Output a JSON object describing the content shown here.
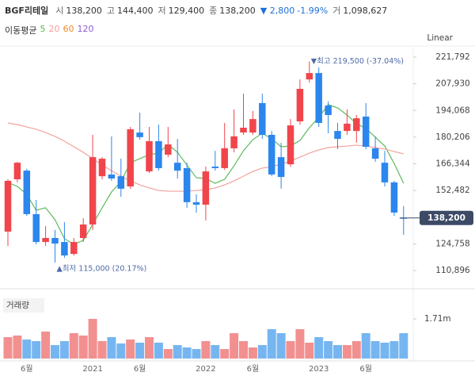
{
  "header": {
    "name": "BGF리테일",
    "items": [
      {
        "label": "시",
        "value": "138,200"
      },
      {
        "label": "고",
        "value": "144,400"
      },
      {
        "label": "저",
        "value": "129,400"
      },
      {
        "label": "종",
        "value": "138,200"
      }
    ],
    "change": "▼ 2,800",
    "change_pct": "-1.99%",
    "volume_label": "거",
    "volume": "1,098,627"
  },
  "chart_data": {
    "type": "candlestick",
    "categories": [
      null,
      null,
      "6월",
      null,
      null,
      null,
      null,
      null,
      null,
      "2021",
      null,
      null,
      null,
      null,
      "6월",
      null,
      null,
      null,
      null,
      null,
      null,
      "2022",
      null,
      null,
      null,
      null,
      "6월",
      null,
      null,
      null,
      null,
      null,
      null,
      "2023",
      null,
      null,
      null,
      null,
      "6월",
      null,
      null,
      null,
      null
    ],
    "open": [
      131100,
      158300,
      162800,
      140200,
      125700,
      127800,
      125700,
      119500,
      127800,
      134800,
      159900,
      160800,
      159900,
      154600,
      182600,
      162400,
      178100,
      171100,
      166900,
      164100,
      146400,
      145100,
      164900,
      164100,
      174400,
      182600,
      182600,
      197900,
      181400,
      169800,
      166100,
      188400,
      210200,
      213500,
      196600,
      183400,
      183400,
      183400,
      190900,
      174400,
      166900,
      156700,
      138200
    ],
    "high": [
      158300,
      167400,
      163700,
      147600,
      134000,
      131900,
      136000,
      127800,
      138100,
      181400,
      169800,
      180600,
      169000,
      185500,
      192900,
      185500,
      186700,
      185500,
      179300,
      166900,
      150500,
      164900,
      173100,
      187600,
      194600,
      202800,
      193800,
      202800,
      183400,
      177300,
      189600,
      210200,
      219500,
      216400,
      198700,
      187600,
      194600,
      191700,
      197900,
      180600,
      173100,
      157500,
      144400
    ],
    "low": [
      123700,
      156700,
      139300,
      124500,
      123700,
      115000,
      117500,
      118700,
      125700,
      131900,
      158300,
      157500,
      149200,
      153400,
      178900,
      161600,
      162800,
      169800,
      158700,
      143500,
      141000,
      136900,
      162800,
      163200,
      172300,
      181400,
      181400,
      179300,
      159900,
      153400,
      164900,
      186700,
      208600,
      185500,
      182200,
      174000,
      181400,
      177300,
      174000,
      167400,
      154600,
      139300,
      129400
    ],
    "close": [
      157500,
      166900,
      140200,
      125700,
      127800,
      124900,
      118700,
      125700,
      134800,
      169800,
      169000,
      158700,
      153400,
      184300,
      180200,
      178100,
      164100,
      176400,
      162800,
      146400,
      145100,
      162400,
      164100,
      174400,
      180600,
      185100,
      189600,
      181400,
      160800,
      159500,
      186300,
      205300,
      213500,
      187600,
      191700,
      179300,
      187200,
      190000,
      175200,
      169000,
      156700,
      141000,
      138200
    ],
    "up_color": "#f0454b",
    "down_color": "#2b86ee",
    "ylim": [
      110896,
      221792
    ],
    "yticks": [
      {
        "value": 221792,
        "label": "221,792"
      },
      {
        "value": 207930,
        "label": "207,930"
      },
      {
        "value": 194068,
        "label": "194,068"
      },
      {
        "value": 180206,
        "label": "180,206"
      },
      {
        "value": 166344,
        "label": "166,344"
      },
      {
        "value": 152482,
        "label": "152,482"
      },
      {
        "value": 124758,
        "label": "124,758"
      },
      {
        "value": 110896,
        "label": "110,896"
      }
    ],
    "grid": false,
    "scale": "Linear",
    "legend_title": "이동평균",
    "series": [
      {
        "name": "5",
        "color": "#5dbb5d",
        "values": [
          156600,
          154600,
          150500,
          142200,
          143500,
          137300,
          127400,
          124500,
          126600,
          134800,
          143500,
          151700,
          157100,
          167000,
          169000,
          171100,
          171900,
          176400,
          172300,
          165700,
          159100,
          158700,
          156200,
          158300,
          165300,
          173100,
          178900,
          182200,
          179300,
          175200,
          175600,
          178500,
          185100,
          190500,
          197100,
          195400,
          191700,
          187200,
          184700,
          180200,
          175600,
          166500,
          156200
        ]
      },
      {
        "name": "20",
        "color": "#f2a29c",
        "values": [
          187600,
          186700,
          185500,
          184300,
          182600,
          180600,
          178100,
          175200,
          172300,
          169000,
          165700,
          162800,
          159900,
          157500,
          155400,
          153800,
          152500,
          152100,
          152100,
          152100,
          152500,
          152900,
          153800,
          155400,
          157500,
          159900,
          162400,
          164100,
          164900,
          166100,
          167800,
          169800,
          171900,
          173600,
          174800,
          175200,
          175600,
          176000,
          175600,
          174800,
          174000,
          172700,
          171500
        ]
      }
    ],
    "legend_only": [
      {
        "name": "60",
        "color": "#f08c2c"
      },
      {
        "name": "120",
        "color": "#9159d6"
      }
    ],
    "annotations": [
      {
        "text": "▼최고 219,500 (-37.04%)",
        "value": 219500,
        "index": 32
      },
      {
        "text": "▲최저 115,000 (20.17%)",
        "value": 115000,
        "index": 5
      }
    ],
    "last_price": {
      "value": 138200,
      "label": "138,200"
    },
    "volume": {
      "title": "거래량",
      "up_color": "#f29090",
      "down_color": "#76b6f0",
      "values": [
        923400,
        991800,
        820800,
        752400,
        1162800,
        581400,
        752400,
        1094400,
        991800,
        1710000,
        752400,
        923400,
        649800,
        820800,
        684000,
        923400,
        684000,
        410400,
        581400,
        478800,
        410400,
        752400,
        581400,
        410400,
        1094400,
        752400,
        478800,
        581400,
        1265400,
        1094400,
        752400,
        1265400,
        684000,
        923400,
        752400,
        581400,
        581400,
        752400,
        1094400,
        752400,
        684000,
        752400,
        1094400
      ],
      "ylim": [
        0,
        2530000
      ],
      "yticks": [
        {
          "value": 1710000,
          "label": "1.71m"
        }
      ]
    }
  }
}
